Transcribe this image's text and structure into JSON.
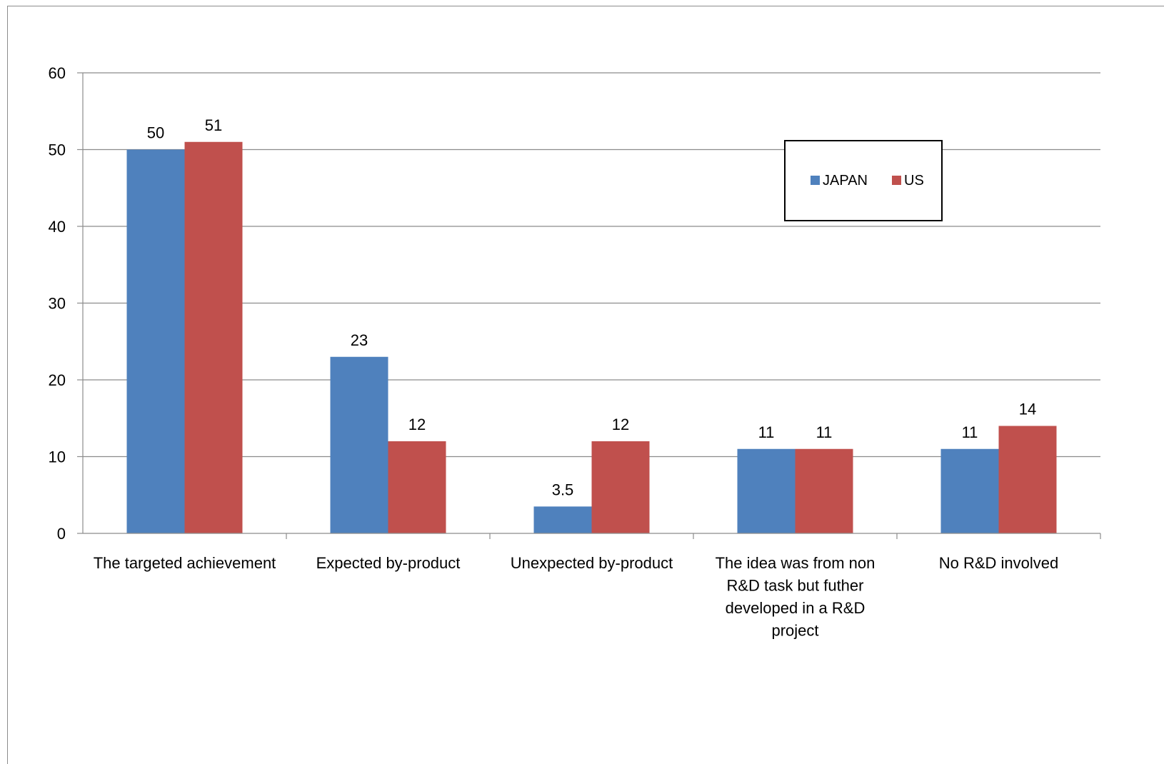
{
  "chart_data": {
    "type": "bar",
    "categories": [
      [
        "The targeted achievement"
      ],
      [
        "Expected by-product"
      ],
      [
        "Unexpected by-product"
      ],
      [
        "The idea was from non",
        "R&D task but futher",
        "developed in a R&D",
        "project"
      ],
      [
        "No R&D involved"
      ]
    ],
    "series": [
      {
        "name": "JAPAN",
        "values": [
          50,
          23,
          3.5,
          11,
          11
        ],
        "labels": [
          "50",
          "23",
          "3.5",
          "11",
          "11"
        ],
        "color": "#4F81BD"
      },
      {
        "name": "US",
        "values": [
          51,
          12,
          12,
          11,
          14
        ],
        "labels": [
          "51",
          "12",
          "12",
          "11",
          "14"
        ],
        "color": "#C0504D"
      }
    ],
    "ylim": [
      0,
      60
    ],
    "yticks": [
      "0",
      "10",
      "20",
      "30",
      "40",
      "50",
      "60"
    ],
    "grid": true,
    "legend_position": "top-right",
    "gridline_color": "#8c8c8c"
  }
}
